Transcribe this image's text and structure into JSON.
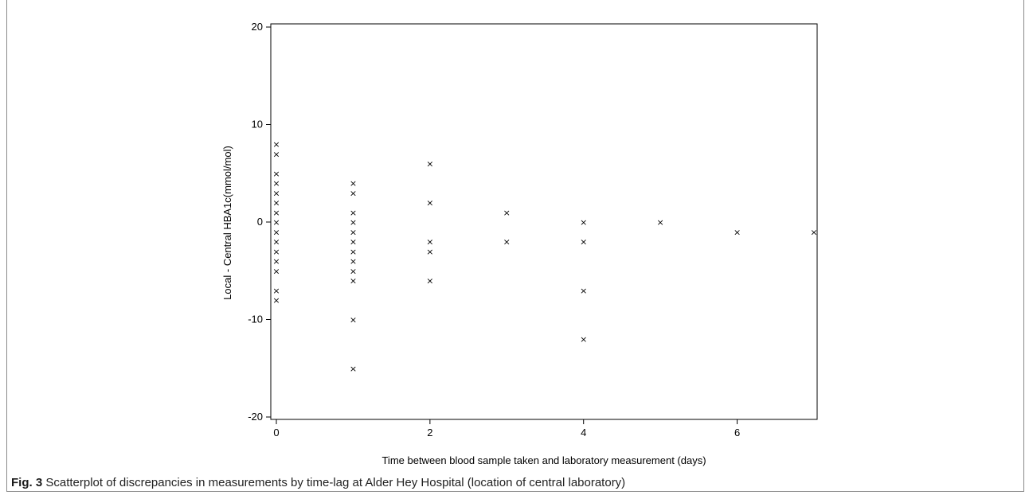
{
  "caption": {
    "label": "Fig. 3",
    "text": "Scatterplot of discrepancies in measurements by time-lag at Alder Hey Hospital (location of central laboratory)"
  },
  "chart_data": {
    "type": "scatter",
    "title": "",
    "xlabel": "Time between blood sample taken and laboratory measurement (days)",
    "ylabel": "Local - Central HBA1c(mmol/mol)",
    "xlim": [
      0,
      7
    ],
    "ylim": [
      -20,
      20
    ],
    "xticks": [
      0,
      2,
      4,
      6
    ],
    "yticks": [
      -20,
      -10,
      0,
      10,
      20
    ],
    "marker": "×",
    "grid": false,
    "points": [
      {
        "x": 0,
        "y": 8
      },
      {
        "x": 0,
        "y": 7
      },
      {
        "x": 0,
        "y": 5
      },
      {
        "x": 0,
        "y": 4
      },
      {
        "x": 0,
        "y": 3
      },
      {
        "x": 0,
        "y": 2
      },
      {
        "x": 0,
        "y": 1
      },
      {
        "x": 0,
        "y": 0
      },
      {
        "x": 0,
        "y": -1
      },
      {
        "x": 0,
        "y": -2
      },
      {
        "x": 0,
        "y": -3
      },
      {
        "x": 0,
        "y": -4
      },
      {
        "x": 0,
        "y": -5
      },
      {
        "x": 0,
        "y": -7
      },
      {
        "x": 0,
        "y": -8
      },
      {
        "x": 1,
        "y": 4
      },
      {
        "x": 1,
        "y": 3
      },
      {
        "x": 1,
        "y": 1
      },
      {
        "x": 1,
        "y": 0
      },
      {
        "x": 1,
        "y": -1
      },
      {
        "x": 1,
        "y": -2
      },
      {
        "x": 1,
        "y": -3
      },
      {
        "x": 1,
        "y": -4
      },
      {
        "x": 1,
        "y": -5
      },
      {
        "x": 1,
        "y": -6
      },
      {
        "x": 1,
        "y": -10
      },
      {
        "x": 1,
        "y": -15
      },
      {
        "x": 2,
        "y": 6
      },
      {
        "x": 2,
        "y": 2
      },
      {
        "x": 2,
        "y": -2
      },
      {
        "x": 2,
        "y": -3
      },
      {
        "x": 2,
        "y": -6
      },
      {
        "x": 3,
        "y": 1
      },
      {
        "x": 3,
        "y": -2
      },
      {
        "x": 4,
        "y": 0
      },
      {
        "x": 4,
        "y": -2
      },
      {
        "x": 4,
        "y": -7
      },
      {
        "x": 4,
        "y": -12
      },
      {
        "x": 5,
        "y": 0
      },
      {
        "x": 6,
        "y": -1
      },
      {
        "x": 7,
        "y": -1
      }
    ]
  }
}
